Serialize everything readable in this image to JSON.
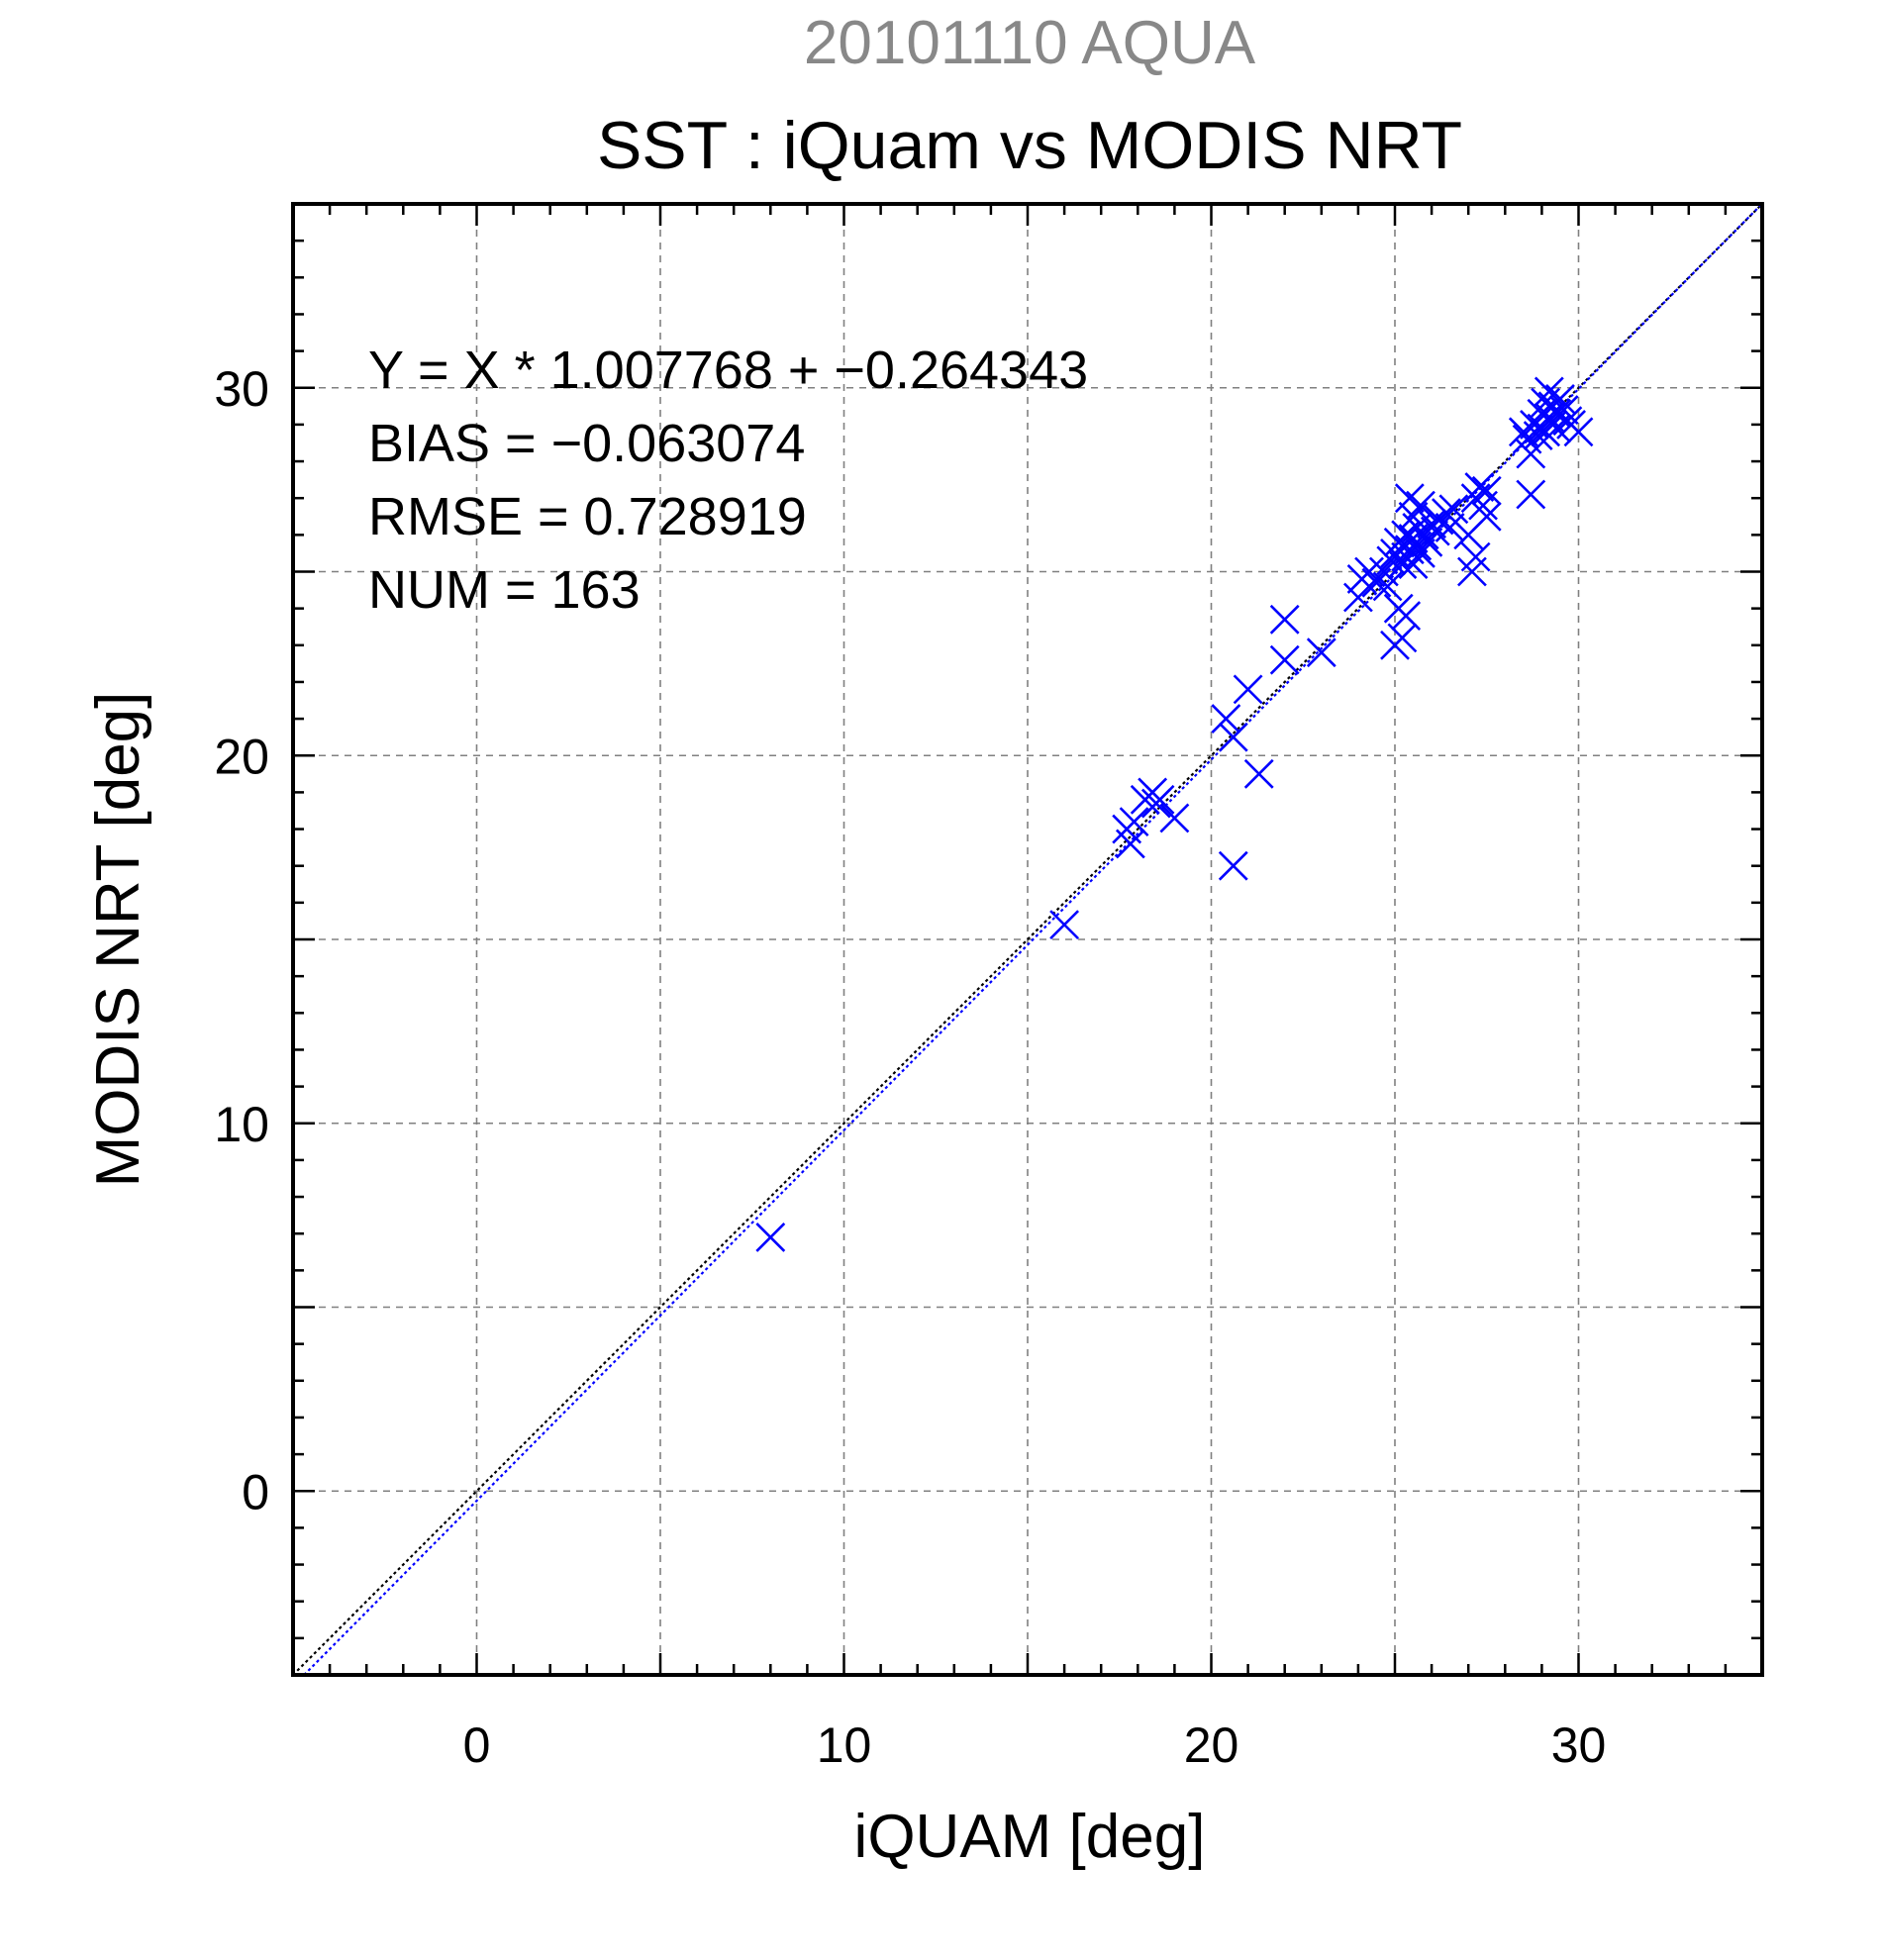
{
  "colors": {
    "points": "#0000ff",
    "grid": "#808080",
    "frame": "#000000",
    "subtitle": "#888888",
    "identity_line": "#000000",
    "fit_line": "#0000ff"
  },
  "chart_data": {
    "type": "scatter",
    "subtitle": "20101110 AQUA",
    "title": "SST : iQuam vs MODIS NRT",
    "xlabel": "iQUAM [deg]",
    "ylabel": "MODIS NRT [deg]",
    "xlim": [
      -5,
      35
    ],
    "ylim": [
      -5,
      35
    ],
    "xticks": [
      0,
      10,
      20,
      30
    ],
    "yticks": [
      0,
      10,
      20,
      30
    ],
    "x_tick_labels": [
      "0",
      "10",
      "20",
      "30"
    ],
    "y_tick_labels": [
      "0",
      "10",
      "20",
      "30"
    ],
    "grid": true,
    "marker": "x",
    "stats": [
      "Y = X * 1.007768 + −0.264343",
      "BIAS = −0.063074",
      "RMSE = 0.728919",
      "NUM = 163"
    ],
    "fit": {
      "slope": 1.007768,
      "intercept": -0.264343
    },
    "points": [
      [
        8.0,
        6.9
      ],
      [
        16.0,
        15.4
      ],
      [
        17.7,
        18.0
      ],
      [
        17.8,
        17.6
      ],
      [
        17.9,
        18.2
      ],
      [
        18.2,
        18.8
      ],
      [
        18.4,
        19.0
      ],
      [
        18.5,
        18.7
      ],
      [
        18.6,
        18.8
      ],
      [
        19.0,
        18.3
      ],
      [
        20.4,
        21.0
      ],
      [
        20.6,
        20.5
      ],
      [
        20.6,
        17.0
      ],
      [
        21.0,
        21.8
      ],
      [
        21.3,
        19.5
      ],
      [
        22.0,
        23.7
      ],
      [
        22.0,
        22.6
      ],
      [
        23.0,
        22.8
      ],
      [
        24.0,
        24.3
      ],
      [
        24.1,
        24.8
      ],
      [
        24.3,
        25.0
      ],
      [
        24.5,
        24.7
      ],
      [
        24.7,
        25.0
      ],
      [
        24.8,
        24.6
      ],
      [
        24.9,
        25.3
      ],
      [
        25.0,
        25.5
      ],
      [
        25.0,
        23.0
      ],
      [
        25.1,
        25.8
      ],
      [
        25.1,
        24.0
      ],
      [
        25.2,
        25.2
      ],
      [
        25.2,
        23.2
      ],
      [
        25.3,
        26.0
      ],
      [
        25.3,
        25.4
      ],
      [
        25.3,
        23.8
      ],
      [
        25.4,
        27.0
      ],
      [
        25.4,
        25.6
      ],
      [
        25.5,
        26.5
      ],
      [
        25.5,
        25.9
      ],
      [
        25.5,
        25.2
      ],
      [
        25.6,
        26.2
      ],
      [
        25.6,
        25.7
      ],
      [
        25.7,
        26.8
      ],
      [
        25.7,
        25.5
      ],
      [
        25.8,
        26.0
      ],
      [
        25.9,
        25.8
      ],
      [
        26.0,
        26.3
      ],
      [
        26.1,
        26.1
      ],
      [
        26.2,
        26.4
      ],
      [
        26.4,
        26.6
      ],
      [
        26.5,
        26.2
      ],
      [
        26.6,
        26.7
      ],
      [
        27.0,
        26.0
      ],
      [
        27.1,
        25.0
      ],
      [
        27.2,
        25.4
      ],
      [
        27.2,
        27.0
      ],
      [
        27.3,
        27.3
      ],
      [
        27.4,
        26.8
      ],
      [
        27.5,
        26.5
      ],
      [
        27.5,
        27.2
      ],
      [
        28.5,
        28.8
      ],
      [
        28.6,
        28.6
      ],
      [
        28.7,
        27.1
      ],
      [
        28.7,
        28.2
      ],
      [
        28.8,
        29.0
      ],
      [
        28.9,
        28.7
      ],
      [
        29.0,
        29.3
      ],
      [
        29.0,
        28.9
      ],
      [
        29.1,
        29.6
      ],
      [
        29.1,
        28.8
      ],
      [
        29.2,
        29.2
      ],
      [
        29.2,
        29.9
      ],
      [
        29.3,
        29.0
      ],
      [
        29.3,
        29.5
      ],
      [
        29.4,
        29.3
      ],
      [
        29.4,
        28.9
      ],
      [
        29.5,
        29.7
      ],
      [
        29.6,
        29.4
      ],
      [
        29.7,
        29.1
      ],
      [
        29.8,
        29.0
      ],
      [
        30.0,
        28.8
      ]
    ]
  }
}
